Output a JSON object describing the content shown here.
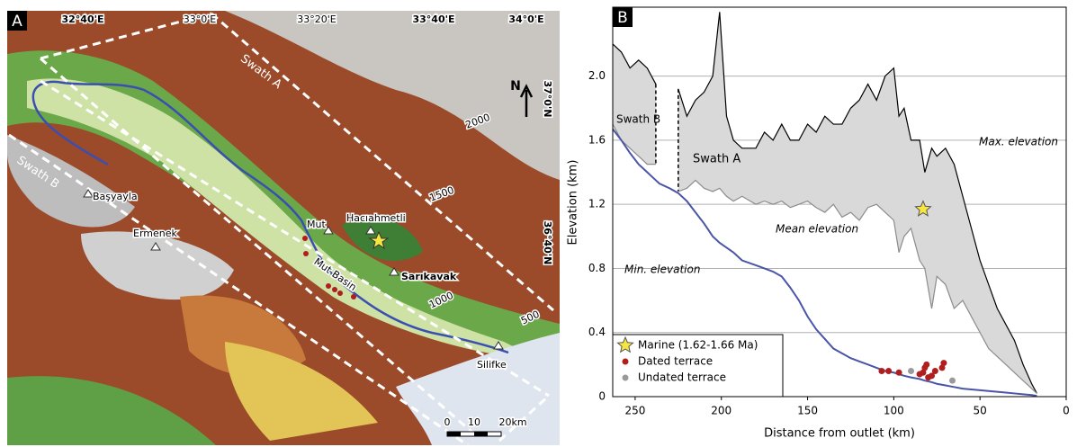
{
  "map": {
    "panel": "A",
    "lon_labels": [
      "32°40'E",
      "33°0'E",
      "33°20'E",
      "33°40'E",
      "34°0'E"
    ],
    "lat_labels": [
      "37°0'N",
      "36°40'N"
    ],
    "north": "N",
    "swaths": [
      "Swath A",
      "Swath B"
    ],
    "contours": [
      "2000",
      "1500",
      "1000",
      "500"
    ],
    "places": [
      "Başyayla",
      "Ermenek",
      "Mut",
      "Hacıahmetli",
      "Sarıkavak",
      "Silifke"
    ],
    "basin": "Mut Basin",
    "scale": [
      "0",
      "10",
      "20km"
    ]
  },
  "chart_data": {
    "type": "line",
    "panel": "B",
    "xlabel": "Distance from outlet (km)",
    "ylabel": "Elevation (km)",
    "xlim": [
      263,
      0
    ],
    "ylim": [
      0,
      2.43
    ],
    "xticks": [
      250,
      200,
      150,
      100,
      50,
      0
    ],
    "yticks": [
      0,
      0.4,
      0.8,
      1.2,
      1.6,
      {
        "value": 2,
        "label": "2.0"
      }
    ],
    "grid": true,
    "fill": "#d9d9d9",
    "legend": "lower left",
    "annotations": [
      "Swath B",
      "Swath A"
    ],
    "x": [
      263,
      258,
      253,
      248,
      243,
      238,
      236,
      230,
      225,
      220,
      215,
      210,
      205,
      201,
      197,
      193,
      188,
      180,
      175,
      170,
      165,
      160,
      155,
      150,
      145,
      140,
      135,
      130,
      125,
      120,
      115,
      110,
      105,
      100,
      97,
      94,
      90,
      85,
      82,
      78,
      75,
      70,
      65,
      60,
      55,
      50,
      45,
      40,
      35,
      30,
      25,
      20,
      17
    ],
    "series": [
      {
        "name": "Max. elevation",
        "color": "#000000",
        "values": [
          2.2,
          2.15,
          2.05,
          2.1,
          2.05,
          1.95,
          null,
          null,
          1.92,
          1.75,
          1.85,
          1.9,
          2.0,
          2.4,
          1.75,
          1.6,
          1.55,
          1.55,
          1.65,
          1.6,
          1.7,
          1.6,
          1.6,
          1.7,
          1.65,
          1.75,
          1.7,
          1.7,
          1.8,
          1.85,
          1.95,
          1.85,
          2.0,
          2.05,
          1.75,
          1.8,
          1.6,
          1.6,
          1.4,
          1.55,
          1.5,
          1.55,
          1.45,
          1.25,
          1.05,
          0.85,
          0.7,
          0.55,
          0.45,
          0.35,
          0.2,
          0.08,
          0.02
        ]
      },
      {
        "name": "Mean elevation",
        "color": "#8c8c8c",
        "values": [
          1.7,
          1.6,
          1.55,
          1.5,
          1.45,
          1.45,
          null,
          null,
          1.28,
          1.3,
          1.35,
          1.3,
          1.28,
          1.3,
          1.25,
          1.22,
          1.25,
          1.2,
          1.22,
          1.2,
          1.22,
          1.18,
          1.2,
          1.22,
          1.18,
          1.15,
          1.2,
          1.12,
          1.15,
          1.1,
          1.18,
          1.2,
          1.15,
          1.1,
          0.9,
          1.0,
          1.05,
          0.85,
          0.8,
          0.55,
          0.75,
          0.7,
          0.55,
          0.6,
          0.5,
          0.4,
          0.3,
          0.25,
          0.2,
          0.15,
          0.1,
          0.05,
          0.02
        ]
      },
      {
        "name": "Min. elevation",
        "color": "#4a55a8",
        "values": [
          1.67,
          1.6,
          1.52,
          1.45,
          1.4,
          1.35,
          1.33,
          1.3,
          1.27,
          1.22,
          1.15,
          1.08,
          1.0,
          0.96,
          0.93,
          0.9,
          0.85,
          0.82,
          0.8,
          0.78,
          0.75,
          0.68,
          0.6,
          0.5,
          0.42,
          0.36,
          0.3,
          0.27,
          0.24,
          0.22,
          0.2,
          0.18,
          0.16,
          0.15,
          0.14,
          0.13,
          0.12,
          0.11,
          0.1,
          0.09,
          0.08,
          0.07,
          0.06,
          0.05,
          0.045,
          0.04,
          0.035,
          0.03,
          0.025,
          0.02,
          0.015,
          0.01,
          0.005
        ]
      }
    ],
    "points": [
      {
        "name": "Marine (1.62-1.66 Ma)",
        "marker": "star",
        "color": "#f5e642",
        "x": [
          83
        ],
        "values": [
          1.17
        ]
      },
      {
        "name": "Dated terrace",
        "marker": "circle",
        "color": "#b01e1e",
        "x": [
          107,
          103,
          97,
          85,
          83,
          82,
          81,
          80,
          78,
          76,
          72,
          71
        ],
        "values": [
          0.16,
          0.16,
          0.15,
          0.14,
          0.15,
          0.18,
          0.2,
          0.12,
          0.13,
          0.16,
          0.18,
          0.21
        ]
      },
      {
        "name": "Undated terrace",
        "marker": "circle",
        "color": "#9a9a9a",
        "x": [
          90,
          66
        ],
        "values": [
          0.16,
          0.1
        ]
      }
    ]
  }
}
